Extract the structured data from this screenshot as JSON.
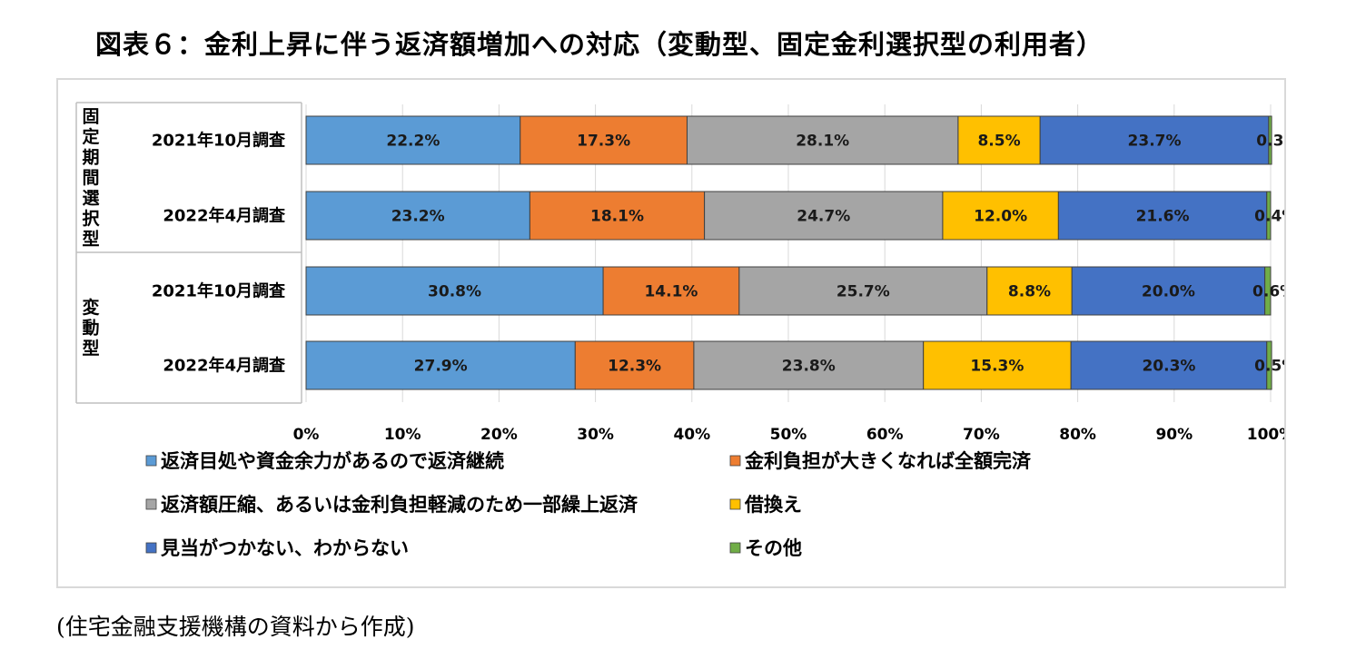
{
  "title": "図表６：金利上昇に伴う返済額増加への対応（変動型、固定金利選択型の利用者）",
  "source": "(住宅金融支援機構の資料から作成)",
  "chart_data": {
    "type": "bar",
    "orientation": "horizontal",
    "stacked": true,
    "percent_stacked": true,
    "groups": [
      {
        "label": "固定期間選択型",
        "categories": [
          "2021年10月調査",
          "2022年4月調査"
        ]
      },
      {
        "label": "変動型",
        "categories": [
          "2021年10月調査",
          "2022年4月調査"
        ]
      }
    ],
    "categories": [
      "2021年10月調査",
      "2022年4月調査",
      "2021年10月調査",
      "2022年4月調査"
    ],
    "series": [
      {
        "name": "返済目処や資金余力があるので返済継続",
        "color": "#5b9bd5",
        "values": [
          22.2,
          23.2,
          30.8,
          27.9
        ]
      },
      {
        "name": "金利負担が大きくなれば全額完済",
        "color": "#ed7d31",
        "values": [
          17.3,
          18.1,
          14.1,
          12.3
        ]
      },
      {
        "name": "返済額圧縮、あるいは金利負担軽減のため一部繰上返済",
        "color": "#a5a5a5",
        "values": [
          28.1,
          24.7,
          25.7,
          23.8
        ]
      },
      {
        "name": "借換え",
        "color": "#ffc000",
        "values": [
          8.5,
          12.0,
          8.8,
          15.3
        ]
      },
      {
        "name": "見当がつかない、わからない",
        "color": "#4472c4",
        "values": [
          23.7,
          21.6,
          20.0,
          20.3
        ]
      },
      {
        "name": "その他",
        "color": "#70ad47",
        "values": [
          0.3,
          0.4,
          0.6,
          0.5
        ]
      }
    ],
    "xlim": [
      0,
      100
    ],
    "xticks": [
      "0%",
      "10%",
      "20%",
      "30%",
      "40%",
      "50%",
      "60%",
      "70%",
      "80%",
      "90%",
      "100%"
    ],
    "value_format": "percent_1dp",
    "grid": true,
    "legend_position": "bottom"
  }
}
